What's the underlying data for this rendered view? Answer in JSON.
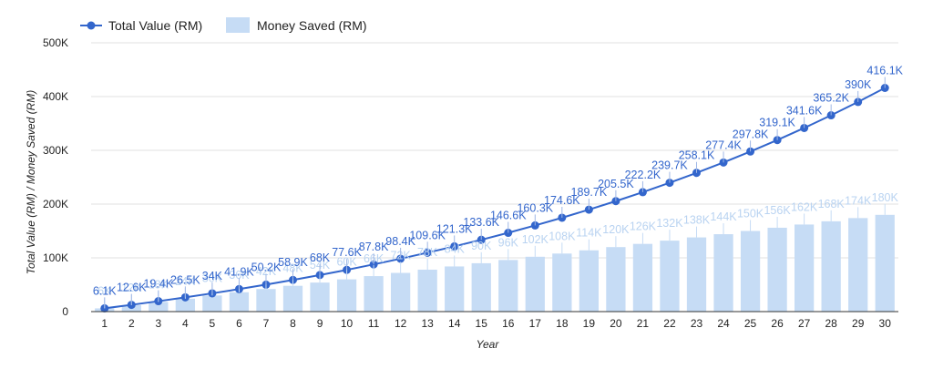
{
  "chart_data": {
    "type": "bar",
    "categories": [
      "1",
      "2",
      "3",
      "4",
      "5",
      "6",
      "7",
      "8",
      "9",
      "10",
      "11",
      "12",
      "13",
      "14",
      "15",
      "16",
      "17",
      "18",
      "19",
      "20",
      "21",
      "22",
      "23",
      "24",
      "25",
      "26",
      "27",
      "28",
      "29",
      "30"
    ],
    "series": [
      {
        "name": "Total Value (RM)",
        "type": "line",
        "color": "#3366cc",
        "values": [
          6100,
          12600,
          19400,
          26500,
          34000,
          41900,
          50200,
          58900,
          68000,
          77600,
          87800,
          98400,
          109600,
          121300,
          133600,
          146600,
          160300,
          174600,
          189700,
          205500,
          222200,
          239700,
          258100,
          277400,
          297800,
          319100,
          341600,
          365200,
          390000,
          416100
        ],
        "labels": [
          "6.1K",
          "12.6K",
          "19.4K",
          "26.5K",
          "34K",
          "41.9K",
          "50.2K",
          "58.9K",
          "68K",
          "77.6K",
          "87.8K",
          "98.4K",
          "109.6K",
          "121.3K",
          "133.6K",
          "146.6K",
          "160.3K",
          "174.6K",
          "189.7K",
          "205.5K",
          "222.2K",
          "239.7K",
          "258.1K",
          "277.4K",
          "297.8K",
          "319.1K",
          "341.6K",
          "365.2K",
          "390K",
          "416.1K"
        ]
      },
      {
        "name": "Money Saved (RM)",
        "type": "bar",
        "color": "#c6dcf5",
        "values": [
          6000,
          12000,
          18000,
          24000,
          30000,
          36000,
          42000,
          48000,
          54000,
          60000,
          66000,
          72000,
          78000,
          84000,
          90000,
          96000,
          102000,
          108000,
          114000,
          120000,
          126000,
          132000,
          138000,
          144000,
          150000,
          156000,
          162000,
          168000,
          174000,
          180000
        ],
        "labels": [
          "6K",
          "12K",
          "18K",
          "24K",
          "30K",
          "36K",
          "42K",
          "48K",
          "54K",
          "60K",
          "66K",
          "72K",
          "78K",
          "84K",
          "90K",
          "96K",
          "102K",
          "108K",
          "114K",
          "120K",
          "126K",
          "132K",
          "138K",
          "144K",
          "150K",
          "156K",
          "162K",
          "168K",
          "174K",
          "180K"
        ]
      }
    ],
    "xlabel": "Year",
    "ylabel": "Total Value (RM) / Money Saved (RM)",
    "ylim": [
      0,
      500000
    ],
    "yticks": [
      "0",
      "100K",
      "200K",
      "300K",
      "400K",
      "500K"
    ],
    "grid": true,
    "legend_position": "top-left"
  }
}
